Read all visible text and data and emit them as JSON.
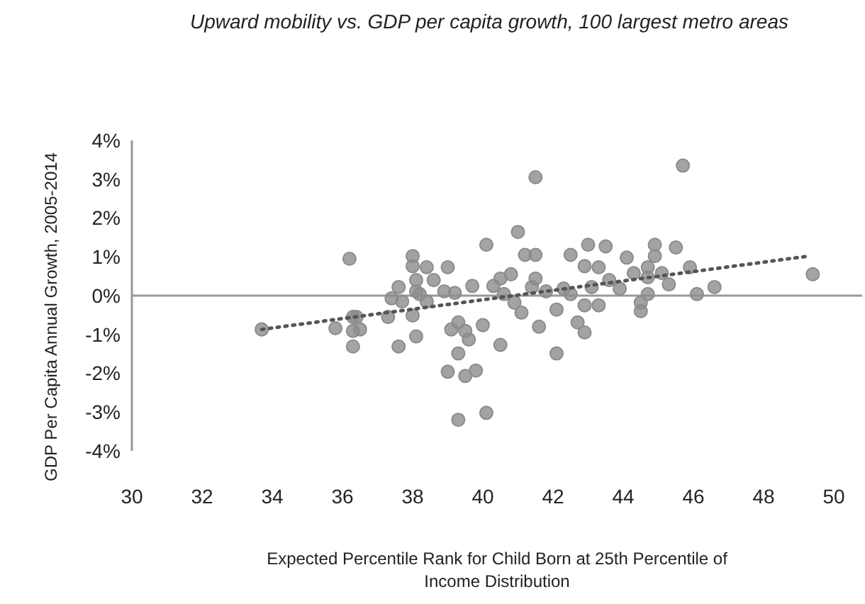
{
  "chart_data": {
    "type": "scatter",
    "title": "Upward mobility vs. GDP per capita growth, 100 largest metro areas",
    "xlabel": "Expected Percentile Rank for Child Born at 25th Percentile of Income Distribution",
    "ylabel": "GDP Per Capita Annual Growth, 2005-2014",
    "xlim": [
      30,
      50
    ],
    "xticks": [
      30,
      32,
      34,
      36,
      38,
      40,
      42,
      44,
      46,
      48,
      50
    ],
    "ylim": [
      -4,
      4
    ],
    "yticks": [
      {
        "value": -4,
        "label": "-4%"
      },
      {
        "value": -3,
        "label": "-3%"
      },
      {
        "value": -2,
        "label": "-2%"
      },
      {
        "value": -1,
        "label": "-1%"
      },
      {
        "value": 0,
        "label": "0%"
      },
      {
        "value": 1,
        "label": "1%"
      },
      {
        "value": 2,
        "label": "2%"
      },
      {
        "value": 3,
        "label": "3%"
      },
      {
        "value": 4,
        "label": "4%"
      }
    ],
    "marker": "circle",
    "series": [
      {
        "color": "#8c8c8c",
        "x": [
          33.7,
          36.2,
          35.8,
          36.3,
          36.3,
          36.3,
          36.4,
          36.5,
          37.4,
          37.6,
          37.7,
          37.3,
          37.6,
          38.0,
          38.0,
          38.1,
          38.1,
          38.2,
          38.4,
          38.0,
          38.1,
          38.6,
          38.4,
          39.0,
          38.9,
          39.2,
          39.7,
          39.3,
          39.1,
          39.5,
          39.6,
          40.0,
          39.3,
          39.0,
          39.5,
          39.8,
          39.3,
          40.1,
          40.5,
          40.1,
          40.3,
          40.5,
          40.8,
          40.6,
          40.9,
          41.1,
          41.0,
          41.2,
          41.5,
          41.5,
          41.5,
          41.4,
          41.6,
          41.8,
          42.1,
          42.1,
          42.5,
          42.9,
          43.0,
          42.3,
          42.5,
          42.7,
          42.9,
          42.9,
          43.5,
          43.3,
          44.1,
          44.9,
          45.5,
          44.9,
          43.1,
          43.6,
          43.9,
          44.3,
          44.7,
          44.7,
          45.1,
          45.3,
          45.9,
          46.6,
          46.1,
          44.7,
          44.5,
          44.5,
          43.3,
          45.7,
          49.4
        ],
        "values": [
          -0.87,
          0.95,
          -0.84,
          -0.55,
          -0.91,
          -1.31,
          -0.55,
          -0.87,
          -0.07,
          0.22,
          -0.15,
          -0.55,
          -1.31,
          1.02,
          0.76,
          0.4,
          0.11,
          0.04,
          0.73,
          -0.51,
          -1.05,
          0.4,
          -0.15,
          0.73,
          0.11,
          0.07,
          0.25,
          -0.69,
          -0.87,
          -0.91,
          -1.13,
          -0.76,
          -1.49,
          -1.96,
          -2.07,
          -1.93,
          -3.2,
          -3.02,
          -1.27,
          1.31,
          0.25,
          0.44,
          0.55,
          0.04,
          -0.18,
          -0.44,
          1.64,
          1.05,
          1.05,
          3.05,
          0.44,
          0.22,
          -0.8,
          0.11,
          -1.49,
          -0.36,
          1.05,
          0.76,
          1.31,
          0.18,
          0.04,
          -0.69,
          -0.95,
          -0.25,
          1.27,
          0.73,
          0.98,
          1.31,
          1.24,
          1.02,
          0.22,
          0.4,
          0.18,
          0.58,
          0.73,
          0.47,
          0.58,
          0.29,
          0.73,
          0.22,
          0.04,
          0.04,
          -0.18,
          -0.4,
          -0.25,
          3.35,
          0.55
        ]
      },
      {
        "type": "line",
        "color": "#555555",
        "line_style": "dotted",
        "marker": "none",
        "x": [
          33.7,
          49.3
        ],
        "values": [
          -0.87,
          1.02
        ]
      }
    ]
  }
}
